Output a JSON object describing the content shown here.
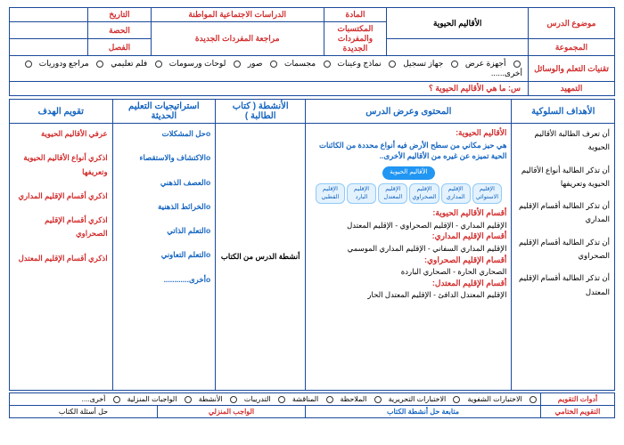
{
  "header": {
    "lesson_topic_label": "موضوع الدرس",
    "lesson_topic": "الأقاليم الحيوية",
    "subject_label": "المادة",
    "subject": "الدراسات الاجتماعية المواطنة",
    "date_label": "التاريخ",
    "class_label": "الحصة",
    "group_label": "المجموعة",
    "vocab_label": "المكتسبات والمفردات الجديدة",
    "vocab": "مراجعة المفردات الجديدة",
    "semester_label": "الفصل"
  },
  "tech": {
    "label": "تقنيات التعلم والوسائل",
    "options": [
      "أجهزة عرض",
      "جهاز تسجيل",
      "نماذج وعينات",
      "مجسمات",
      "صور",
      "لوحات ورسومات",
      "فلم تعليمي",
      "مراجع ودوريات",
      "أخرى......"
    ]
  },
  "tamheed": {
    "label": "التمهيد",
    "question": "س: ما هي الأقاليم الحيوية ؟"
  },
  "columns": {
    "c1": "الأهداف السلوكية",
    "c2": "المحتوى وعرض الدرس",
    "c3": "الأنشطة ( كتاب الطالبة )",
    "c4": "استراتيجيات التعليم الحديثة",
    "c5": "تقويم الهدف"
  },
  "objectives": [
    "أن تعرف الطالبة الأقاليم الحيوية",
    "أن تذكر الطالبة أنواع الأقاليم الحيوية وتعريفها",
    "أن تذكر الطالبة أقسام الإقليم المداري",
    "أن تذكر الطالبة أقسام الإقليم الصحراوي",
    "أن تذكر الطالبة أقسام الإقليم المعتدل"
  ],
  "content": {
    "title1": "الأقاليم الحيوية:",
    "def": "هي حيز مكاني من سطح الأرض فيه أنواع محددة من الكائنات الحية تميزه عن غيره من الأقاليم الأخرى..",
    "diagram_title": "الأقاليم الحيوية",
    "diagram_boxes": [
      "الإقليم الاستوائي",
      "الإقليم المداري",
      "الإقليم الصحراوي",
      "الإقليم المعتدل",
      "الإقليم البارد",
      "الإقليم القطبي"
    ],
    "title2": "أقسام الأقاليم الحيوية:",
    "line1": "الإقليم المداري - الإقليم الصحراوي - الإقليم المعتدل",
    "title3": "أقسام الإقليم المداري:",
    "line2": "الإقليم المداري السفاني - الإقليم المداري الموسمي",
    "title4": "أقسام الإقليم الصحراوي:",
    "line3": "الصحاري الحارة - الصحاري الباردة",
    "title5": "أقسام الإقليم المعتدل:",
    "line4": "الإقليم المعتدل الدافئ - الإقليم المعتدل الحار"
  },
  "activities": "أنشطة الدرس من الكتاب",
  "strategies": [
    "oحل المشكلات",
    "oالاكتشاف والاستقصاء",
    "oالعصف الذهني",
    "oالخرائط الذهنية",
    "oالتعلم الذاتي",
    "oالتعلم التعاوني",
    "oأخرى............"
  ],
  "evaluation": [
    "عرفي الأقاليم الحيوية",
    "اذكري أنواع الأقاليم الحيوية وتعريفها",
    "اذكري أقسام الإقليم المداري",
    "اذكري أقسام الإقليم الصحراوي",
    "اذكري أقسام الإقليم المعتدل"
  ],
  "footer": {
    "tools_label": "أدوات التقويم",
    "tools": [
      "الاختبارات الشفوية",
      "الاختبارات التحريرية",
      "الملاحظة",
      "المناقشة",
      "التدريبات",
      "الأنشطة",
      "الواجبات المنزلية",
      "أخرى...."
    ],
    "final_label": "التقويم الختامي",
    "f1": "متابعة حل أنشطة الكتاب",
    "f2": "الواجب المنزلي",
    "f3": "حل أسئلة الكتاب"
  }
}
